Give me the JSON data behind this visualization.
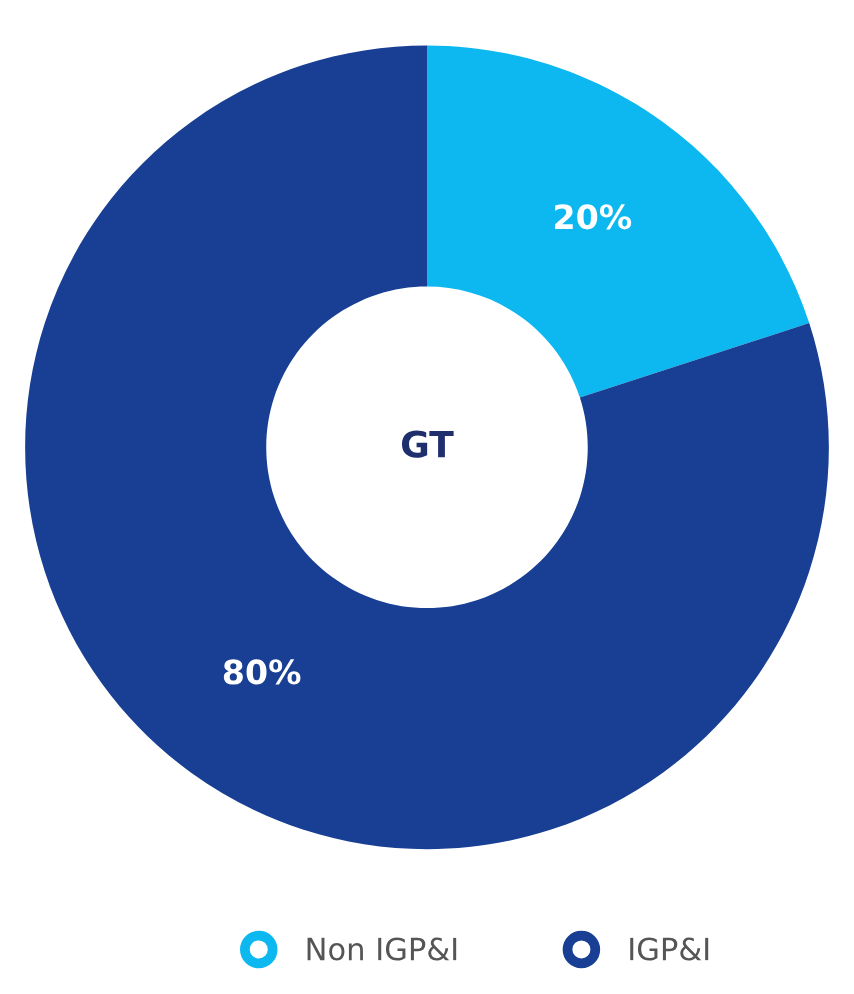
{
  "chart_data": {
    "type": "donut",
    "categories": [
      "Non IGP&I",
      "IGP&I"
    ],
    "values": [
      20,
      80
    ],
    "colors": [
      "#0cb8ef",
      "#183f93"
    ],
    "value_labels": [
      "20%",
      "80%"
    ],
    "annotations": [
      "GT"
    ],
    "legend": "bottom"
  }
}
